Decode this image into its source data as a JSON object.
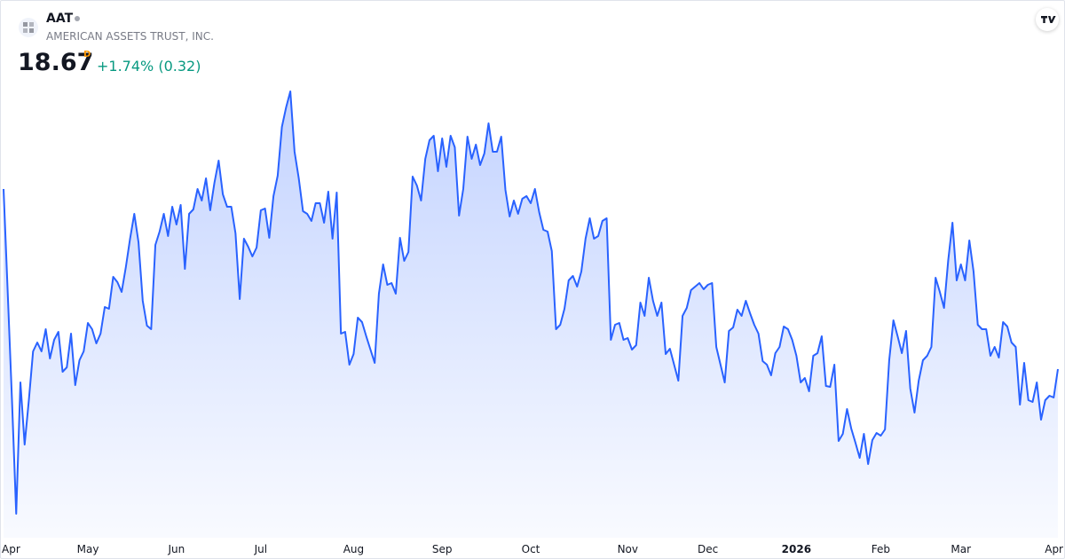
{
  "header": {
    "symbol": "AAT",
    "company": "AMERICAN ASSETS TRUST, INC.",
    "price": 18.67,
    "interval": "D",
    "change": "+1.74% (0.32)"
  },
  "chart_data": {
    "type": "area",
    "color": "#2962ff",
    "values": [
      20.7,
      19.52,
      18.32,
      17.04,
      18.52,
      17.82,
      18.32,
      18.87,
      18.97,
      18.87,
      19.12,
      18.79,
      19.0,
      19.09,
      18.64,
      18.69,
      19.07,
      18.49,
      18.77,
      18.87,
      19.19,
      19.12,
      18.96,
      19.07,
      19.37,
      19.35,
      19.71,
      19.65,
      19.54,
      19.82,
      20.14,
      20.42,
      20.1,
      19.44,
      19.16,
      19.12,
      20.07,
      20.22,
      20.42,
      20.17,
      20.5,
      20.3,
      20.52,
      19.8,
      20.42,
      20.47,
      20.7,
      20.57,
      20.82,
      20.46,
      20.77,
      21.02,
      20.64,
      20.5,
      20.5,
      20.2,
      19.46,
      20.14,
      20.05,
      19.94,
      20.04,
      20.46,
      20.48,
      20.15,
      20.62,
      20.85,
      21.4,
      21.62,
      21.8,
      21.12,
      20.82,
      20.45,
      20.42,
      20.34,
      20.54,
      20.54,
      20.32,
      20.67,
      20.14,
      20.66,
      19.07,
      19.09,
      18.72,
      18.84,
      19.25,
      19.2,
      19.04,
      18.89,
      18.74,
      19.52,
      19.85,
      19.62,
      19.64,
      19.52,
      20.15,
      19.89,
      19.99,
      20.84,
      20.74,
      20.57,
      21.04,
      21.25,
      21.3,
      20.9,
      21.27,
      20.95,
      21.3,
      21.17,
      20.4,
      20.7,
      21.29,
      21.04,
      21.2,
      20.97,
      21.1,
      21.44,
      21.12,
      21.12,
      21.29,
      20.69,
      20.39,
      20.57,
      20.42,
      20.59,
      20.62,
      20.54,
      20.7,
      20.44,
      20.24,
      20.22,
      20.0,
      19.12,
      19.17,
      19.35,
      19.67,
      19.72,
      19.6,
      19.77,
      20.14,
      20.37,
      20.14,
      20.17,
      20.34,
      20.37,
      19.0,
      19.17,
      19.19,
      19.0,
      19.02,
      18.89,
      18.94,
      19.42,
      19.27,
      19.7,
      19.44,
      19.27,
      19.42,
      18.84,
      18.9,
      18.72,
      18.54,
      19.27,
      19.36,
      19.56,
      19.6,
      19.64,
      19.57,
      19.62,
      19.64,
      18.92,
      18.72,
      18.52,
      19.1,
      19.14,
      19.34,
      19.27,
      19.44,
      19.3,
      19.17,
      19.07,
      18.76,
      18.72,
      18.6,
      18.85,
      18.92,
      19.15,
      19.12,
      19.0,
      18.82,
      18.52,
      18.57,
      18.42,
      18.82,
      18.85,
      19.04,
      18.48,
      18.47,
      18.72,
      17.86,
      17.94,
      18.22,
      18.0,
      17.84,
      17.67,
      17.94,
      17.6,
      17.87,
      17.95,
      17.92,
      17.99,
      18.77,
      19.22,
      19.04,
      18.85,
      19.1,
      18.45,
      18.18,
      18.54,
      18.77,
      18.82,
      18.92,
      19.7,
      19.54,
      19.36,
      19.9,
      20.32,
      19.67,
      19.85,
      19.67,
      20.12,
      19.77,
      19.17,
      19.12,
      19.12,
      18.82,
      18.92,
      18.8,
      19.2,
      19.15,
      18.97,
      18.92,
      18.27,
      18.74,
      18.32,
      18.3,
      18.52,
      18.1,
      18.32,
      18.37,
      18.35,
      18.67
    ],
    "xticks": [
      {
        "value": 2,
        "label": "Apr"
      },
      {
        "value": 20,
        "label": "May"
      },
      {
        "value": 41,
        "label": "Jun"
      },
      {
        "value": 61,
        "label": "Jul"
      },
      {
        "value": 83,
        "label": "Aug"
      },
      {
        "value": 104,
        "label": "Sep"
      },
      {
        "value": 125,
        "label": "Oct"
      },
      {
        "value": 148,
        "label": "Nov"
      },
      {
        "value": 167,
        "label": "Dec"
      },
      {
        "value": 188,
        "label": "2026"
      },
      {
        "value": 208,
        "label": "Feb"
      },
      {
        "value": 227,
        "label": "Mar"
      },
      {
        "value": 249,
        "label": "Apr"
      }
    ]
  }
}
